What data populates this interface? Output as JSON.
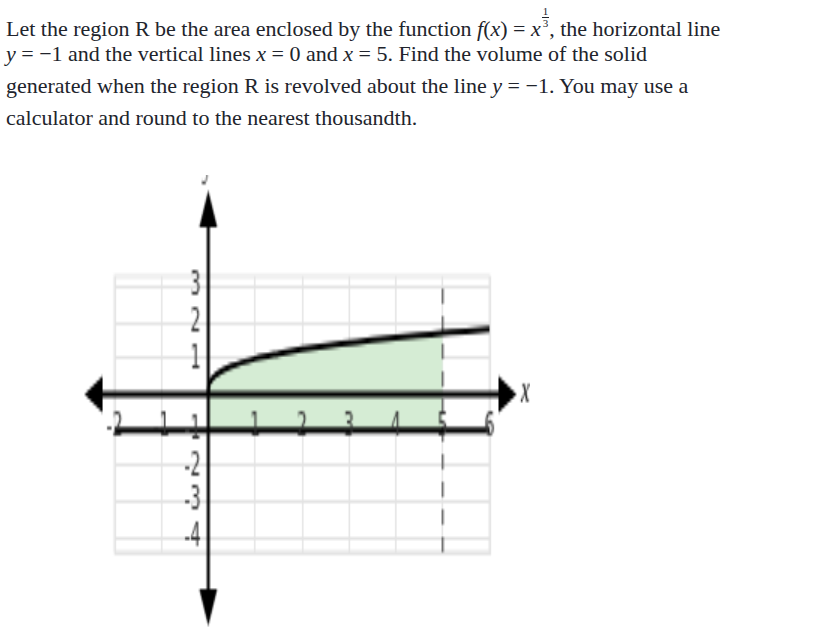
{
  "question": {
    "lines": [
      [
        {
          "t": "Let the region R be the area enclosed by the function "
        },
        {
          "m": "f(x) = x"
        },
        {
          "frac": [
            "1",
            "3"
          ]
        },
        {
          "t": ", the horizontal line"
        }
      ],
      [
        {
          "m": "y = −1"
        },
        {
          "t": " and the vertical lines "
        },
        {
          "m": "x = 0"
        },
        {
          "t": " and "
        },
        {
          "m": "x = 5"
        },
        {
          "t": ". Find the volume of the solid"
        }
      ],
      [
        {
          "t": "generated when the region R is revolved about the line "
        },
        {
          "m": "y = −1"
        },
        {
          "t": ". You may use a"
        }
      ],
      [
        {
          "t": "calculator and round to the nearest thousandth."
        }
      ]
    ]
  },
  "chart_data": {
    "type": "line",
    "x_label": "x",
    "y_label": "y",
    "xlim": [
      -2,
      6
    ],
    "ylim": [
      -4.4,
      3.3
    ],
    "xticks": [
      -2,
      -1,
      1,
      2,
      3,
      4,
      5,
      6
    ],
    "yticks": [
      -4,
      -3,
      -2,
      -1,
      1,
      2,
      3
    ],
    "grid": true,
    "x": [
      0,
      0.01,
      0.05,
      0.1,
      0.2,
      0.5,
      1,
      1.5,
      2,
      2.5,
      3,
      3.5,
      4,
      4.5,
      5,
      5.5,
      6
    ],
    "values": [
      0,
      0.22,
      0.37,
      0.46,
      0.58,
      0.79,
      1,
      1.14,
      1.26,
      1.36,
      1.44,
      1.52,
      1.59,
      1.65,
      1.71,
      1.77,
      1.82
    ],
    "color": "#000000",
    "horizontal_line": -1,
    "vertical_line": 5,
    "region": {
      "x_from": 0,
      "x_to": 5,
      "lower": -1,
      "color": "#d5ecd4"
    }
  }
}
